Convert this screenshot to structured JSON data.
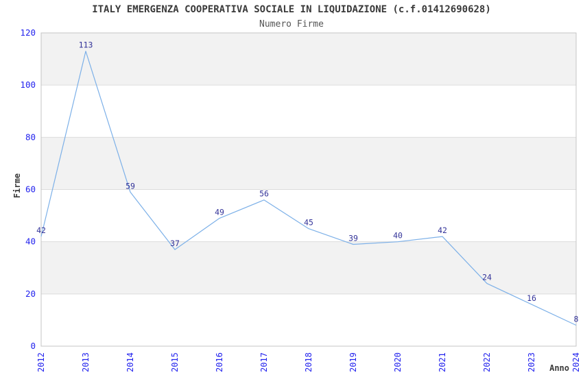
{
  "chart_data": {
    "type": "line",
    "title": "ITALY EMERGENZA COOPERATIVA SOCIALE IN LIQUIDAZIONE (c.f.01412690628)",
    "subtitle": "Numero Firme",
    "xlabel": "Anno",
    "ylabel": "Firme",
    "categories": [
      "2012",
      "2013",
      "2014",
      "2015",
      "2016",
      "2017",
      "2018",
      "2019",
      "2020",
      "2021",
      "2022",
      "2023",
      "2024"
    ],
    "values": [
      42,
      113,
      59,
      37,
      49,
      56,
      45,
      39,
      40,
      42,
      24,
      16,
      8
    ],
    "ylim": [
      0,
      120
    ],
    "yticks": [
      0,
      20,
      40,
      60,
      80,
      100,
      120
    ],
    "legend": "none",
    "grid": "horizontal-bands-alternating",
    "colors": {
      "line": "#7cb0e8",
      "value_label": "#333399",
      "tick_label": "#2222ee",
      "title": "#3a3a3a",
      "subtitle": "#555555",
      "band": "#f2f2f2",
      "gridline": "#dcdcdc",
      "plot_border": "#c4c4c4",
      "background": "#ffffff"
    }
  }
}
